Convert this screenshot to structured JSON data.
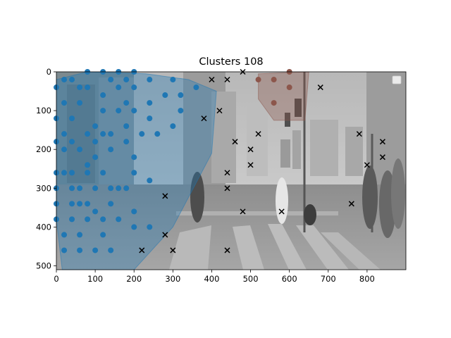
{
  "chart_data": {
    "type": "scatter",
    "title": "Clusters 108",
    "xlabel": "",
    "ylabel": "",
    "xlim": [
      0,
      900
    ],
    "ylim": [
      510,
      0
    ],
    "y_inverted": true,
    "grid": false,
    "legend": "top-right (empty)",
    "background": "grayscale photo of a city street crosswalk with pedestrians",
    "xticks": [
      0,
      100,
      200,
      300,
      400,
      500,
      600,
      700,
      800
    ],
    "yticks": [
      0,
      100,
      200,
      300,
      400,
      500
    ],
    "series": [
      {
        "marker": "circle",
        "color": "#1f77b4",
        "hull": [
          [
            0,
            20
          ],
          [
            0,
            380
          ],
          [
            15,
            510
          ],
          [
            200,
            510
          ],
          [
            300,
            400
          ],
          [
            400,
            210
          ],
          [
            412,
            50
          ],
          [
            340,
            20
          ],
          [
            230,
            5
          ],
          [
            80,
            0
          ]
        ],
        "points": [
          [
            0,
            40
          ],
          [
            0,
            120
          ],
          [
            0,
            180
          ],
          [
            0,
            260
          ],
          [
            0,
            300
          ],
          [
            0,
            340
          ],
          [
            0,
            380
          ],
          [
            20,
            20
          ],
          [
            20,
            80
          ],
          [
            20,
            160
          ],
          [
            20,
            200
          ],
          [
            20,
            260
          ],
          [
            20,
            420
          ],
          [
            20,
            460
          ],
          [
            40,
            20
          ],
          [
            40,
            120
          ],
          [
            40,
            180
          ],
          [
            40,
            260
          ],
          [
            40,
            300
          ],
          [
            40,
            340
          ],
          [
            40,
            380
          ],
          [
            60,
            40
          ],
          [
            60,
            80
          ],
          [
            60,
            200
          ],
          [
            60,
            300
          ],
          [
            60,
            340
          ],
          [
            60,
            420
          ],
          [
            60,
            460
          ],
          [
            80,
            0
          ],
          [
            80,
            40
          ],
          [
            80,
            160
          ],
          [
            80,
            240
          ],
          [
            80,
            260
          ],
          [
            80,
            340
          ],
          [
            80,
            380
          ],
          [
            100,
            140
          ],
          [
            100,
            180
          ],
          [
            100,
            220
          ],
          [
            100,
            300
          ],
          [
            100,
            360
          ],
          [
            100,
            460
          ],
          [
            120,
            0
          ],
          [
            120,
            60
          ],
          [
            120,
            100
          ],
          [
            120,
            160
          ],
          [
            120,
            260
          ],
          [
            120,
            380
          ],
          [
            120,
            420
          ],
          [
            140,
            20
          ],
          [
            140,
            160
          ],
          [
            140,
            200
          ],
          [
            140,
            300
          ],
          [
            140,
            340
          ],
          [
            140,
            460
          ],
          [
            160,
            0
          ],
          [
            160,
            40
          ],
          [
            160,
            100
          ],
          [
            160,
            300
          ],
          [
            160,
            380
          ],
          [
            180,
            20
          ],
          [
            180,
            80
          ],
          [
            180,
            140
          ],
          [
            180,
            180
          ],
          [
            180,
            300
          ],
          [
            200,
            0
          ],
          [
            200,
            40
          ],
          [
            200,
            100
          ],
          [
            200,
            220
          ],
          [
            200,
            260
          ],
          [
            200,
            360
          ],
          [
            200,
            400
          ],
          [
            220,
            160
          ],
          [
            240,
            20
          ],
          [
            240,
            80
          ],
          [
            240,
            120
          ],
          [
            240,
            280
          ],
          [
            240,
            400
          ],
          [
            260,
            160
          ],
          [
            280,
            60
          ],
          [
            300,
            20
          ],
          [
            300,
            140
          ],
          [
            320,
            60
          ],
          [
            320,
            100
          ],
          [
            360,
            40
          ]
        ]
      },
      {
        "marker": "circle",
        "color": "#8c564b",
        "hull": [
          [
            520,
            5
          ],
          [
            520,
            70
          ],
          [
            560,
            125
          ],
          [
            640,
            125
          ],
          [
            650,
            0
          ]
        ],
        "points": [
          [
            520,
            20
          ],
          [
            560,
            20
          ],
          [
            560,
            80
          ],
          [
            600,
            0
          ],
          [
            600,
            40
          ]
        ]
      },
      {
        "marker": "x",
        "color": "#000000",
        "points": [
          [
            220,
            460
          ],
          [
            280,
            320
          ],
          [
            280,
            420
          ],
          [
            300,
            460
          ],
          [
            380,
            120
          ],
          [
            400,
            20
          ],
          [
            420,
            100
          ],
          [
            440,
            20
          ],
          [
            440,
            260
          ],
          [
            440,
            300
          ],
          [
            440,
            460
          ],
          [
            460,
            180
          ],
          [
            480,
            0
          ],
          [
            480,
            360
          ],
          [
            500,
            200
          ],
          [
            500,
            240
          ],
          [
            520,
            160
          ],
          [
            580,
            360
          ],
          [
            680,
            40
          ],
          [
            760,
            340
          ],
          [
            780,
            160
          ],
          [
            800,
            240
          ],
          [
            840,
            180
          ],
          [
            840,
            220
          ]
        ]
      }
    ]
  }
}
